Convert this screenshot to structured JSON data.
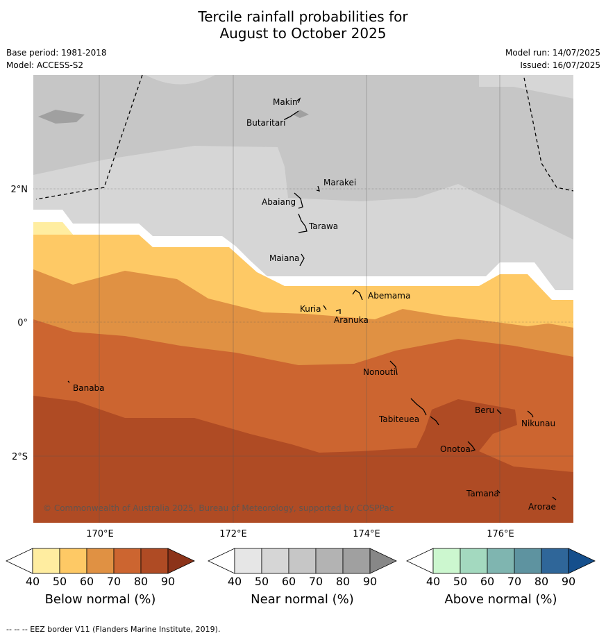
{
  "title_line1": "Tercile rainfall probabilities for",
  "title_line2": "August to October 2025",
  "base_period": "Base period: 1981-2018",
  "model": "Model: ACCESS-S2",
  "model_run": "Model run: 14/07/2025",
  "issued": "Issued: 16/07/2025",
  "map": {
    "lat_labels": [
      "2°N",
      "0°",
      "2°S"
    ],
    "lon_labels": [
      "170°E",
      "172°E",
      "174°E",
      "176°E"
    ],
    "copyright": "© Commonwealth of Australia 2025, Bureau of Meteorology, supported by COSPPac",
    "islands": [
      "Makin",
      "Butaritari",
      "Marakei",
      "Abaiang",
      "Tarawa",
      "Maiana",
      "Abemama",
      "Kuria",
      "Aranuka",
      "Nonouti",
      "Banaba",
      "Beru",
      "Nikunau",
      "Tabiteuea",
      "Onotoa",
      "Tamana",
      "Arorae"
    ]
  },
  "colorbars": [
    {
      "label": "Below normal (%)",
      "ticks": [
        "40",
        "50",
        "60",
        "70",
        "80",
        "90"
      ],
      "colors": [
        "#ffffff",
        "#ffeda0",
        "#fec965",
        "#e09143",
        "#cc6530",
        "#af4b24",
        "#8c3319"
      ]
    },
    {
      "label": "Near normal (%)",
      "ticks": [
        "40",
        "50",
        "60",
        "70",
        "80",
        "90"
      ],
      "colors": [
        "#ffffff",
        "#e6e6e6",
        "#d6d6d6",
        "#c6c6c6",
        "#b3b3b3",
        "#a0a0a0",
        "#878787"
      ]
    },
    {
      "label": "Above normal (%)",
      "ticks": [
        "40",
        "50",
        "60",
        "70",
        "80",
        "90"
      ],
      "colors": [
        "#ffffff",
        "#ccf7cf",
        "#a3d9bf",
        "#7fb5b0",
        "#5e93a0",
        "#2f6699",
        "#154f8c"
      ]
    }
  ],
  "footer": "--  --  -- EEZ border V11 (Flanders Marine Institute, 2019)."
}
